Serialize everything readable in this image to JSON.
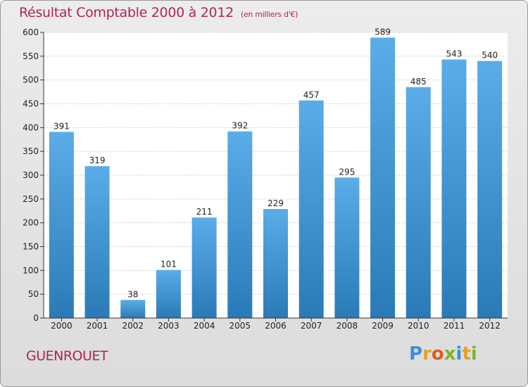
{
  "header": {
    "title": "Résultat Comptable 2000 à 2012",
    "subtitle": "(en milliers d'€)"
  },
  "footer": {
    "place": "GUENROUET",
    "logo_letters": [
      "P",
      "r",
      "o",
      "x",
      "i",
      "t",
      "i"
    ],
    "logo_colors": [
      "#3d8fd8",
      "#e6a21c",
      "#e05a20",
      "#7ab52c",
      "#3d8fd8",
      "#e6a21c",
      "#7ab52c"
    ]
  },
  "chart_data": {
    "type": "bar",
    "title": "Résultat Comptable 2000 à 2012",
    "subtitle": "(en milliers d'€)",
    "categories": [
      "2000",
      "2001",
      "2002",
      "2003",
      "2004",
      "2005",
      "2006",
      "2007",
      "2008",
      "2009",
      "2010",
      "2011",
      "2012"
    ],
    "values": [
      391,
      319,
      38,
      101,
      211,
      392,
      229,
      457,
      295,
      589,
      485,
      543,
      540
    ],
    "ylim": [
      0,
      600
    ],
    "yticks": [
      0,
      50,
      100,
      150,
      200,
      250,
      300,
      350,
      400,
      450,
      500,
      550,
      600
    ],
    "grid": true,
    "bar_color_top": "#5aade8",
    "bar_color_bottom": "#2a7ab8"
  }
}
